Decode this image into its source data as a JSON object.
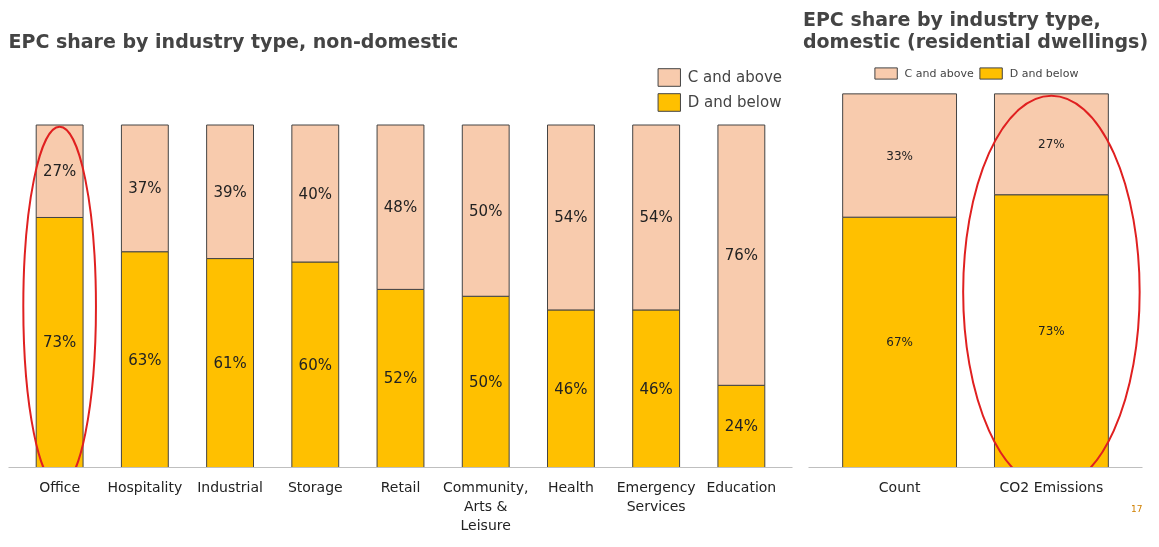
{
  "chart_data": [
    {
      "type": "bar",
      "stacked": true,
      "title": "EPC share by industry type, non-domestic",
      "legend": "top right",
      "grid": false,
      "categories": [
        "Office",
        "Hospitality",
        "Industrial",
        "Storage",
        "Retail",
        "Community, Arts & Leisure",
        "Health",
        "Emergency Services",
        "Education"
      ],
      "series": [
        {
          "name": "D and below",
          "color": "#ffc000",
          "values": [
            73,
            63,
            61,
            60,
            52,
            50,
            46,
            46,
            24
          ],
          "value_labels": [
            "73%",
            "63%",
            "61%",
            "60%",
            "52%",
            "50%",
            "46%",
            "46%",
            "24%"
          ]
        },
        {
          "name": "C and above",
          "color": "#f8cbad",
          "values": [
            27,
            37,
            39,
            40,
            48,
            50,
            54,
            54,
            76
          ],
          "value_labels": [
            "27%",
            "37%",
            "39%",
            "40%",
            "48%",
            "50%",
            "54%",
            "54%",
            "76%"
          ]
        }
      ]
    },
    {
      "type": "bar",
      "stacked": true,
      "title": "EPC share by industry type, domestic (residential dwellings)",
      "legend": "top",
      "grid": false,
      "categories": [
        "Count",
        "CO2 Emissions"
      ],
      "series": [
        {
          "name": "D and below",
          "color": "#ffc000",
          "values": [
            67,
            73
          ],
          "value_labels": [
            "67%",
            "73%"
          ]
        },
        {
          "name": "C and above",
          "color": "#f8cbad",
          "values": [
            33,
            27
          ],
          "value_labels": [
            "33%",
            "27%"
          ]
        }
      ],
      "annotations": [
        "17"
      ]
    }
  ]
}
